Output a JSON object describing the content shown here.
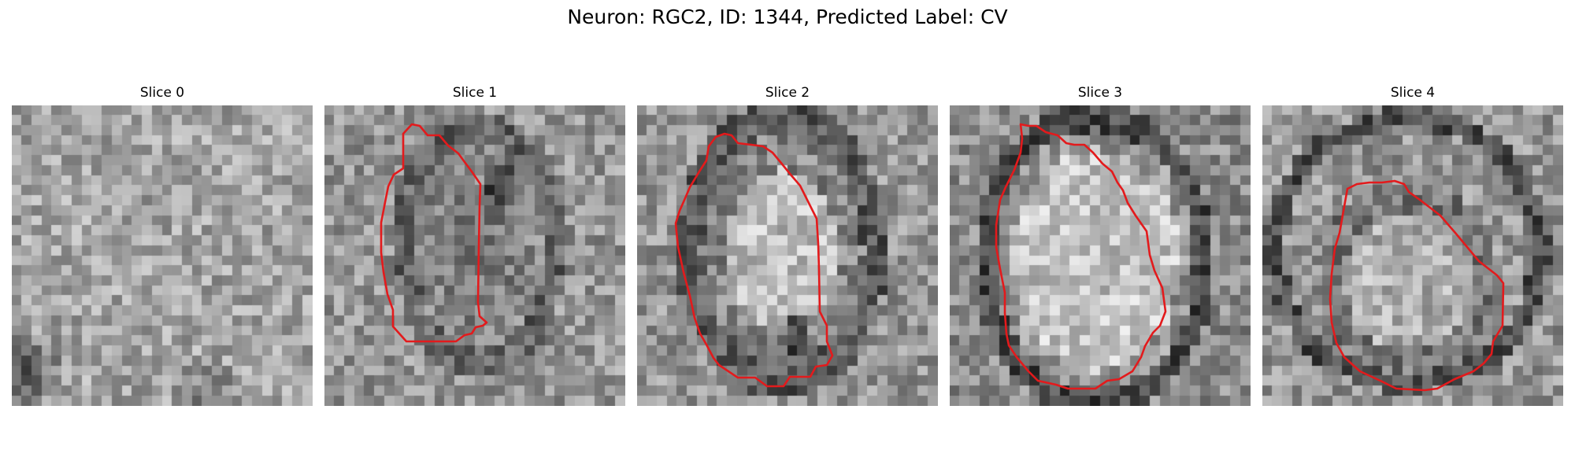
{
  "figure": {
    "title": "Neuron: RGC2, ID: 1344, Predicted Label: CV"
  },
  "contour_color": "#e31a1c",
  "slices": [
    {
      "title": "Slice 0",
      "has_contour": false
    },
    {
      "title": "Slice 1",
      "has_contour": true
    },
    {
      "title": "Slice 2",
      "has_contour": true
    },
    {
      "title": "Slice 3",
      "has_contour": true
    },
    {
      "title": "Slice 4",
      "has_contour": true
    }
  ]
}
